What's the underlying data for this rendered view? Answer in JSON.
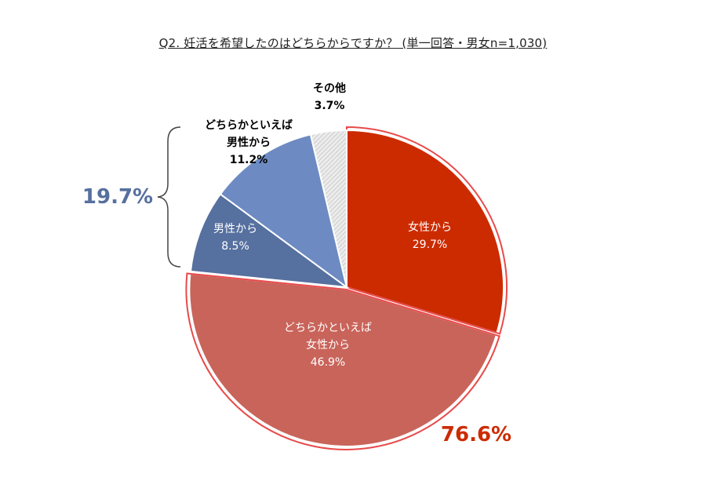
{
  "chart_data": {
    "type": "pie",
    "title": "Q2. 妊活を希望したのはどちらからですか？ (単一回答・男女n=1,030)",
    "slices": [
      {
        "label_lines": [
          "女性から",
          "29.7%"
        ],
        "value": 29.7,
        "color": "#CC2B00"
      },
      {
        "label_lines": [
          "どちらかといえば",
          "女性から",
          "46.9%"
        ],
        "value": 46.9,
        "color": "#C9645A"
      },
      {
        "label_lines": [
          "男性から",
          "8.5%"
        ],
        "value": 8.5,
        "color": "#56709F"
      },
      {
        "label_lines": [
          "どちらかといえば",
          "男性から",
          "11.2%"
        ],
        "value": 11.2,
        "color": "#6D8BC2"
      },
      {
        "label_lines": [
          "その他",
          "3.7%"
        ],
        "value": 3.7,
        "color": "#D8D8D8"
      }
    ],
    "group_labels": [
      {
        "text": "76.6%",
        "color": "#CC2B00",
        "group": "female"
      },
      {
        "text": "19.7%",
        "color": "#56709F",
        "group": "male"
      }
    ],
    "legend": "none"
  }
}
